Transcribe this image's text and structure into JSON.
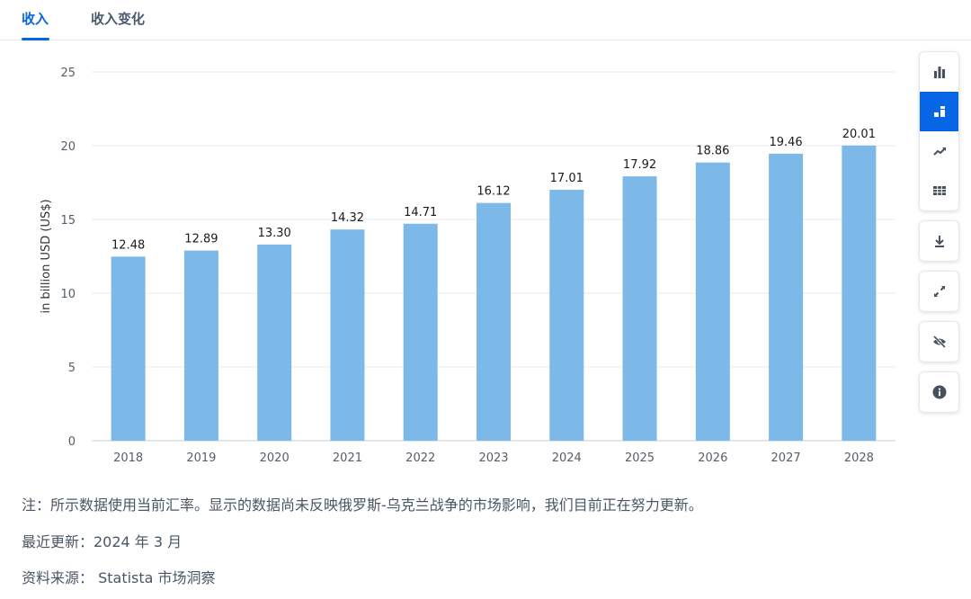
{
  "tabs": [
    {
      "label": "收入",
      "active": true
    },
    {
      "label": "收入变化",
      "active": false
    }
  ],
  "toolbar": {
    "icons": [
      "bar-chart-icon",
      "stacked-chart-icon",
      "trend-line-icon",
      "table-icon",
      "download-icon",
      "expand-icon",
      "hide-icon",
      "info-icon"
    ],
    "active": "stacked-chart-icon"
  },
  "chart_data": {
    "type": "bar",
    "categories": [
      "2018",
      "2019",
      "2020",
      "2021",
      "2022",
      "2023",
      "2024",
      "2025",
      "2026",
      "2027",
      "2028"
    ],
    "values": [
      12.48,
      12.89,
      13.3,
      14.32,
      14.71,
      16.12,
      17.01,
      17.92,
      18.86,
      19.46,
      20.01
    ],
    "value_labels": [
      "12.48",
      "12.89",
      "13.30",
      "14.32",
      "14.71",
      "16.12",
      "17.01",
      "17.92",
      "18.86",
      "19.46",
      "20.01"
    ],
    "ylabel": "in billion USD (US$)",
    "ylim": [
      0,
      25
    ],
    "yticks": [
      0,
      5,
      10,
      15,
      20,
      25
    ],
    "grid": true,
    "bar_color": "#7cb9e8"
  },
  "notes": {
    "note": "注：所示数据使用当前汇率。显示的数据尚未反映俄罗斯-乌克兰战争的市场影响，我们目前正在努力更新。",
    "updated": "最近更新：2024 年 3 月",
    "source": "资料来源： Statista 市场洞察"
  }
}
